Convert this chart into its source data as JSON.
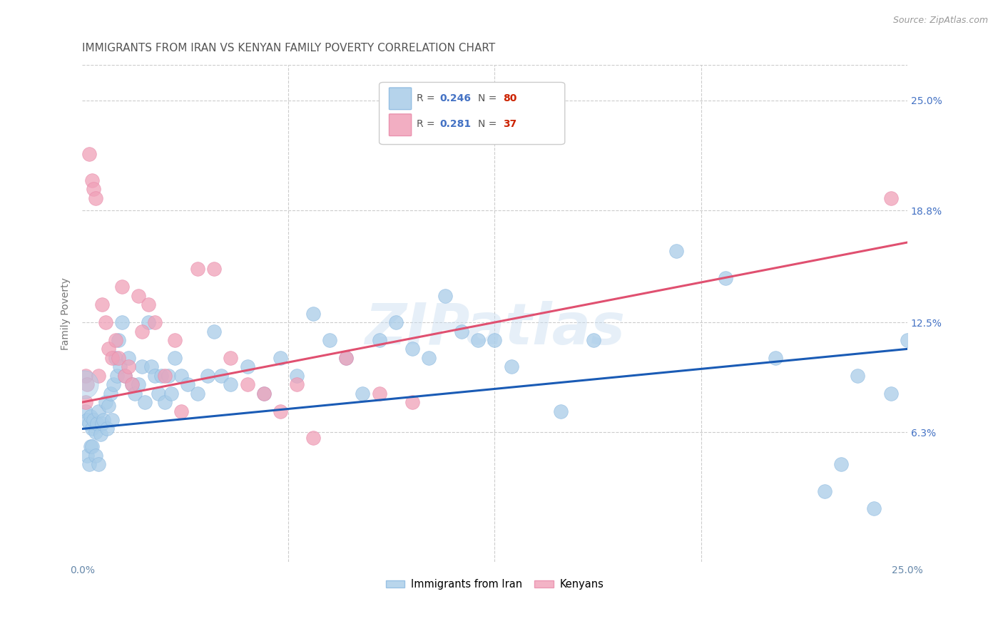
{
  "title": "IMMIGRANTS FROM IRAN VS KENYAN FAMILY POVERTY CORRELATION CHART",
  "source": "Source: ZipAtlas.com",
  "ylabel": "Family Poverty",
  "ytick_values": [
    6.3,
    12.5,
    18.8,
    25.0
  ],
  "ytick_labels": [
    "6.3%",
    "12.5%",
    "18.8%",
    "25.0%"
  ],
  "xtick_values": [
    0.0,
    6.25,
    12.5,
    18.75,
    25.0
  ],
  "xtick_labels": [
    "0.0%",
    "",
    "",
    "",
    "25.0%"
  ],
  "xlim": [
    0.0,
    25.0
  ],
  "ylim": [
    -1.0,
    27.0
  ],
  "blue_color": "#a8cce8",
  "pink_color": "#f0a0b8",
  "blue_line_color": "#1a5bb5",
  "pink_line_color": "#e05070",
  "watermark": "ZIPatlas",
  "legend_r1": "0.246",
  "legend_n1": "80",
  "legend_r2": "0.281",
  "legend_n2": "37",
  "blue_x": [
    0.1,
    0.15,
    0.2,
    0.25,
    0.3,
    0.35,
    0.4,
    0.45,
    0.5,
    0.55,
    0.6,
    0.65,
    0.7,
    0.75,
    0.8,
    0.85,
    0.9,
    0.95,
    1.0,
    1.05,
    1.1,
    1.15,
    1.2,
    1.3,
    1.4,
    1.5,
    1.6,
    1.7,
    1.8,
    1.9,
    2.0,
    2.1,
    2.2,
    2.3,
    2.4,
    2.5,
    2.6,
    2.7,
    2.8,
    3.0,
    3.2,
    3.5,
    3.8,
    4.0,
    4.2,
    4.5,
    5.0,
    5.5,
    6.0,
    6.5,
    7.0,
    7.5,
    8.0,
    8.5,
    9.0,
    9.5,
    10.0,
    10.5,
    11.0,
    11.5,
    12.0,
    12.5,
    13.0,
    14.5,
    15.5,
    18.0,
    19.5,
    21.0,
    22.5,
    23.0,
    23.5,
    24.0,
    24.5,
    25.0,
    0.15,
    0.2,
    0.25,
    0.3,
    0.4,
    0.5
  ],
  "blue_y": [
    7.5,
    7.0,
    6.8,
    7.2,
    6.5,
    7.0,
    6.3,
    6.8,
    7.5,
    6.2,
    6.8,
    7.0,
    8.0,
    6.5,
    7.8,
    8.5,
    7.0,
    9.0,
    10.5,
    9.5,
    11.5,
    10.0,
    12.5,
    9.5,
    10.5,
    9.0,
    8.5,
    9.0,
    10.0,
    8.0,
    12.5,
    10.0,
    9.5,
    8.5,
    9.5,
    8.0,
    9.5,
    8.5,
    10.5,
    9.5,
    9.0,
    8.5,
    9.5,
    12.0,
    9.5,
    9.0,
    10.0,
    8.5,
    10.5,
    9.5,
    13.0,
    11.5,
    10.5,
    8.5,
    11.5,
    12.5,
    11.0,
    10.5,
    14.0,
    12.0,
    11.5,
    11.5,
    10.0,
    7.5,
    11.5,
    16.5,
    15.0,
    10.5,
    3.0,
    4.5,
    9.5,
    2.0,
    8.5,
    11.5,
    5.0,
    4.5,
    5.5,
    5.5,
    5.0,
    4.5
  ],
  "pink_x": [
    0.1,
    0.15,
    0.2,
    0.3,
    0.35,
    0.4,
    0.5,
    0.6,
    0.7,
    0.8,
    0.9,
    1.0,
    1.1,
    1.2,
    1.3,
    1.4,
    1.5,
    1.7,
    1.8,
    2.0,
    2.2,
    2.5,
    2.8,
    3.0,
    3.5,
    4.0,
    4.5,
    5.0,
    5.5,
    6.0,
    6.5,
    7.0,
    8.0,
    9.0,
    10.0,
    24.5,
    0.1
  ],
  "pink_y": [
    9.5,
    9.0,
    22.0,
    20.5,
    20.0,
    19.5,
    9.5,
    13.5,
    12.5,
    11.0,
    10.5,
    11.5,
    10.5,
    14.5,
    9.5,
    10.0,
    9.0,
    14.0,
    12.0,
    13.5,
    12.5,
    9.5,
    11.5,
    7.5,
    15.5,
    15.5,
    10.5,
    9.0,
    8.5,
    7.5,
    9.0,
    6.0,
    10.5,
    8.5,
    8.0,
    19.5,
    8.0
  ],
  "grid_color": "#cccccc",
  "background_color": "#ffffff",
  "title_fontsize": 11,
  "axis_label_fontsize": 10,
  "tick_fontsize": 10,
  "source_fontsize": 9
}
